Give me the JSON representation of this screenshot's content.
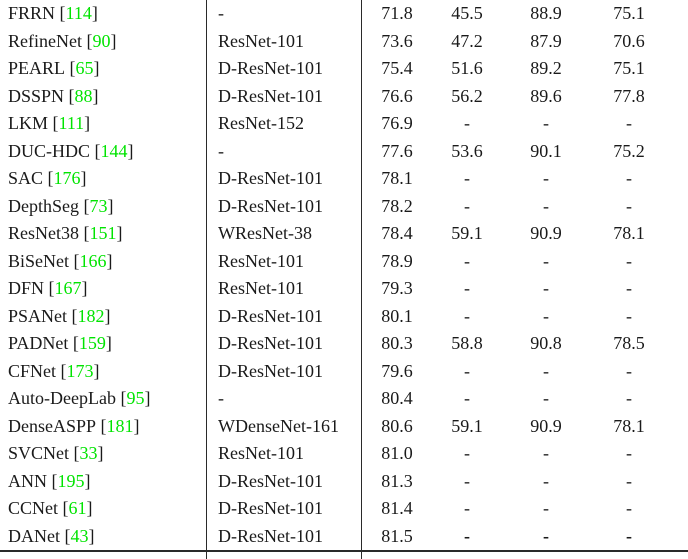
{
  "table": {
    "citation_color": "#00e400",
    "bracket_open": "[",
    "bracket_close": "]",
    "rows": [
      {
        "method": "FRRN",
        "ref": "114",
        "backbone": "-",
        "values": [
          "71.8",
          "45.5",
          "88.9",
          "75.1"
        ],
        "bold_dashes": false
      },
      {
        "method": "RefineNet",
        "ref": "90",
        "backbone": "ResNet-101",
        "values": [
          "73.6",
          "47.2",
          "87.9",
          "70.6"
        ],
        "bold_dashes": false
      },
      {
        "method": "PEARL",
        "ref": "65",
        "backbone": "D-ResNet-101",
        "values": [
          "75.4",
          "51.6",
          "89.2",
          "75.1"
        ],
        "bold_dashes": false
      },
      {
        "method": "DSSPN",
        "ref": "88",
        "backbone": "D-ResNet-101",
        "values": [
          "76.6",
          "56.2",
          "89.6",
          "77.8"
        ],
        "bold_dashes": false
      },
      {
        "method": "LKM",
        "ref": "111",
        "backbone": "ResNet-152",
        "values": [
          "76.9",
          "-",
          "-",
          "-"
        ],
        "bold_dashes": false
      },
      {
        "method": "DUC-HDC",
        "ref": "144",
        "backbone": "-",
        "values": [
          "77.6",
          "53.6",
          "90.1",
          "75.2"
        ],
        "bold_dashes": false
      },
      {
        "method": "SAC",
        "ref": "176",
        "backbone": "D-ResNet-101",
        "values": [
          "78.1",
          "-",
          "-",
          "-"
        ],
        "bold_dashes": false
      },
      {
        "method": "DepthSeg",
        "ref": "73",
        "backbone": "D-ResNet-101",
        "values": [
          "78.2",
          "-",
          "-",
          "-"
        ],
        "bold_dashes": false
      },
      {
        "method": "ResNet38",
        "ref": "151",
        "backbone": "WResNet-38",
        "values": [
          "78.4",
          "59.1",
          "90.9",
          "78.1"
        ],
        "bold_dashes": false
      },
      {
        "method": "BiSeNet",
        "ref": "166",
        "backbone": "ResNet-101",
        "values": [
          "78.9",
          "-",
          "-",
          "-"
        ],
        "bold_dashes": false
      },
      {
        "method": "DFN",
        "ref": "167",
        "backbone": "ResNet-101",
        "values": [
          "79.3",
          "-",
          "-",
          "-"
        ],
        "bold_dashes": false
      },
      {
        "method": "PSANet",
        "ref": "182",
        "backbone": "D-ResNet-101",
        "values": [
          "80.1",
          "-",
          "-",
          "-"
        ],
        "bold_dashes": false
      },
      {
        "method": "PADNet",
        "ref": "159",
        "backbone": "D-ResNet-101",
        "values": [
          "80.3",
          "58.8",
          "90.8",
          "78.5"
        ],
        "bold_dashes": false
      },
      {
        "method": "CFNet",
        "ref": "173",
        "backbone": "D-ResNet-101",
        "values": [
          "79.6",
          "-",
          "-",
          "-"
        ],
        "bold_dashes": false
      },
      {
        "method": "Auto-DeepLab",
        "ref": "95",
        "backbone": "-",
        "values": [
          "80.4",
          "-",
          "-",
          "-"
        ],
        "bold_dashes": false
      },
      {
        "method": "DenseASPP",
        "ref": "181",
        "backbone": "WDenseNet-161",
        "values": [
          "80.6",
          "59.1",
          "90.9",
          "78.1"
        ],
        "bold_dashes": false
      },
      {
        "method": "SVCNet",
        "ref": "33",
        "backbone": "ResNet-101",
        "values": [
          "81.0",
          "-",
          "-",
          "-"
        ],
        "bold_dashes": false
      },
      {
        "method": "ANN",
        "ref": "195",
        "backbone": "D-ResNet-101",
        "values": [
          "81.3",
          "-",
          "-",
          "-"
        ],
        "bold_dashes": false
      },
      {
        "method": "CCNet",
        "ref": "61",
        "backbone": "D-ResNet-101",
        "values": [
          "81.4",
          "-",
          "-",
          "-"
        ],
        "bold_dashes": false
      },
      {
        "method": "DANet",
        "ref": "43",
        "backbone": "D-ResNet-101",
        "values": [
          "81.5",
          "-",
          "-",
          "-"
        ],
        "bold_dashes": true
      }
    ]
  }
}
